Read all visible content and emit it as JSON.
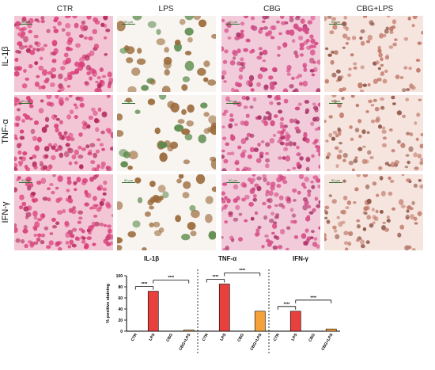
{
  "columns": [
    "CTR",
    "LPS",
    "CBG",
    "CBG+LPS"
  ],
  "rows": [
    "IL-1β",
    "TNF-α",
    "IFN-γ"
  ],
  "scale_label": "50 μm",
  "colors": {
    "ctr_cell": "#d9407a",
    "lps_cell": "#9a6a3a",
    "cbg_cell": "#d54a85",
    "cbglps_cell": "#c07a6a",
    "bar_red": "#e8403c",
    "bar_orange": "#f5a23a"
  },
  "panel_styles": [
    [
      "ctr",
      "lps",
      "cbg",
      "cbglps"
    ],
    [
      "ctr",
      "lps",
      "cbg",
      "cbglps"
    ],
    [
      "ctr",
      "lps",
      "cbg",
      "cbglps"
    ]
  ],
  "chart_data": {
    "type": "bar",
    "groups": [
      "IL-1β",
      "TNF-α",
      "IFN-γ"
    ],
    "categories": [
      "CTR",
      "LPS",
      "CBG",
      "CBG+LPS"
    ],
    "series": [
      {
        "group": "IL-1β",
        "values": [
          0,
          72,
          0,
          2
        ]
      },
      {
        "group": "TNF-α",
        "values": [
          0,
          85,
          0,
          36
        ]
      },
      {
        "group": "IFN-γ",
        "values": [
          0,
          36,
          0,
          4
        ]
      }
    ],
    "ylabel": "% positive staining",
    "ylim": [
      0,
      100
    ],
    "yticks": [
      0,
      20,
      40,
      60,
      80,
      100
    ],
    "significance": "****",
    "bar_colors": [
      "#e8403c",
      "#e8403c",
      "#e8403c",
      "#f5a23a"
    ]
  }
}
